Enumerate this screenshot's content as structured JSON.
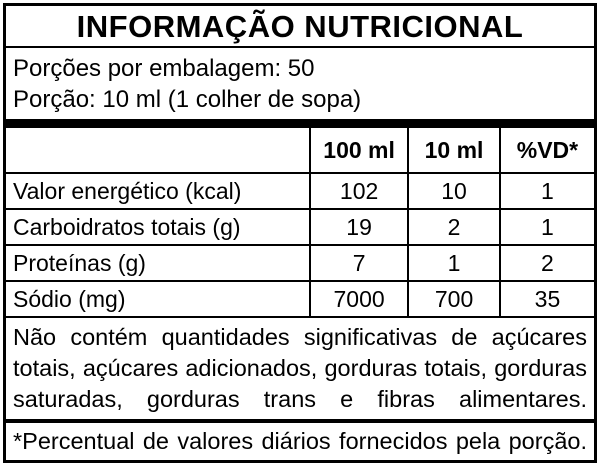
{
  "label": {
    "title": "INFORMAÇÃO NUTRICIONAL",
    "servings_per_package": "Porções por embalagem: 50",
    "portion": "Porção: 10 ml (1 colher de sopa)",
    "table": {
      "col_headers": [
        "100 ml",
        "10 ml",
        "%VD*"
      ],
      "rows": [
        {
          "name": "Valor energético (kcal)",
          "values": [
            "102",
            "10",
            "1"
          ]
        },
        {
          "name": "Carboidratos totais (g)",
          "values": [
            "19",
            "2",
            "1"
          ]
        },
        {
          "name": "Proteínas (g)",
          "values": [
            "7",
            "1",
            "2"
          ]
        },
        {
          "name": "Sódio (mg)",
          "values": [
            "7000",
            "700",
            "35"
          ]
        }
      ]
    },
    "note_lines": [
      "Não contém quantidades significativas de açúcares",
      "totais, açúcares adicionados, gorduras totais, gorduras",
      "saturadas, gorduras trans e fibras alimentares."
    ],
    "footnote": "*Percentual de valores diários fornecidos pela porção.",
    "colors": {
      "background": "#ffffff",
      "text": "#000000",
      "border": "#000000"
    }
  }
}
